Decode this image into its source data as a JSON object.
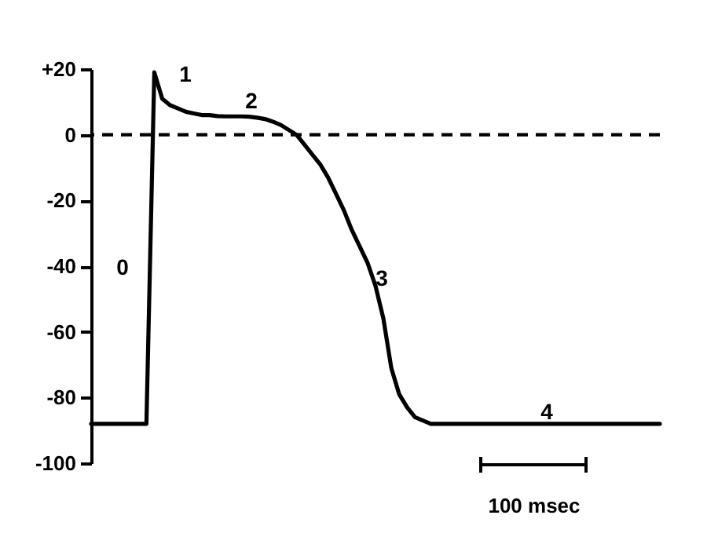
{
  "chart_data": {
    "type": "line",
    "categories": [
      null,
      null,
      null,
      null,
      null,
      null,
      null,
      null,
      null,
      null,
      null,
      null,
      null,
      null,
      null,
      null,
      null,
      null,
      null,
      null,
      null,
      null,
      null,
      null,
      null,
      null,
      null,
      null,
      null,
      null,
      null,
      null,
      null,
      null,
      null,
      null,
      null,
      null,
      null,
      null,
      null,
      null,
      null,
      null,
      null,
      null,
      null,
      null,
      null,
      null,
      null,
      null,
      null,
      null,
      null,
      null,
      null,
      null,
      null,
      null,
      null,
      null,
      null,
      null,
      null,
      null,
      null,
      null,
      null,
      null,
      null,
      null,
      null
    ],
    "series": [
      {
        "color": "#000000",
        "values": [
          -88,
          -88,
          -88,
          -88,
          -88,
          -88,
          -88,
          -88,
          19,
          11,
          9,
          8,
          7,
          6.5,
          6,
          6,
          5.7,
          5.6,
          5.6,
          5.6,
          5.5,
          5.2,
          4.8,
          4,
          3,
          1.5,
          0,
          -3,
          -6,
          -9,
          -13,
          -18,
          -23,
          -29,
          -34,
          -39,
          -46,
          -56,
          -71,
          -79,
          -83,
          -86,
          -87,
          -88,
          -88,
          -88,
          -88,
          -88,
          -88,
          -88,
          -88,
          -88,
          -88,
          -88,
          -88,
          -88,
          -88,
          -88,
          -88,
          -88,
          -88,
          -88,
          -88,
          -88,
          -88,
          -88,
          -88,
          -88,
          -88,
          -88,
          -88,
          -88,
          -88
        ]
      }
    ],
    "ylim": [
      -100,
      20
    ],
    "yticks": [
      {
        "value": 20,
        "label": "+20"
      },
      0,
      -20,
      -40,
      -60,
      -80,
      -100
    ],
    "ref_lines": [
      {
        "axis": "y",
        "value": 0,
        "color": "#000000",
        "line_style": "dashed"
      }
    ],
    "annotations": [
      "0",
      "1",
      "2",
      "3",
      "4",
      "100 msec"
    ],
    "grid": false,
    "legend": false,
    "marker": "none",
    "line_style": "solid",
    "tick_labels": "y"
  }
}
